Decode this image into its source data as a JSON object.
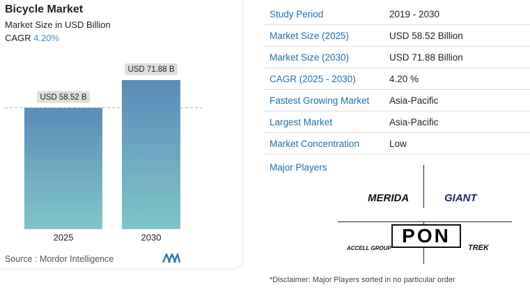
{
  "chart_data": {
    "type": "bar",
    "title": "Bicycle Market",
    "subtitle": "Market Size in USD Billion",
    "cagr_label": "CAGR",
    "cagr_value": "4.20%",
    "categories": [
      "2025",
      "2030"
    ],
    "values": [
      58.52,
      71.88
    ],
    "value_labels": [
      "USD 58.52 B",
      "USD 71.88 B"
    ],
    "colors": [
      "#5b8cb8",
      "#80c5c9"
    ],
    "source": "Source :  Mordor Intelligence"
  },
  "table": {
    "rows": [
      [
        "Study Period",
        "2019 - 2030"
      ],
      [
        "Market Size (2025)",
        "USD 58.52 Billion"
      ],
      [
        "Market Size (2030)",
        "USD 71.88 Billion"
      ],
      [
        "CAGR (2025 - 2030)",
        "4.20 %"
      ],
      [
        "Fastest Growing Market",
        "Asia-Pacific"
      ],
      [
        "Largest Market",
        "Asia-Pacific"
      ],
      [
        "Market Concentration",
        "Low"
      ]
    ]
  },
  "major_players": {
    "heading": "Major Players",
    "players": [
      "MERIDA",
      "GIANT",
      "PON",
      "ACCELL GROUP",
      "TREK"
    ]
  },
  "disclaimer": "*Disclaimer: Major Players sorted in no particular order"
}
